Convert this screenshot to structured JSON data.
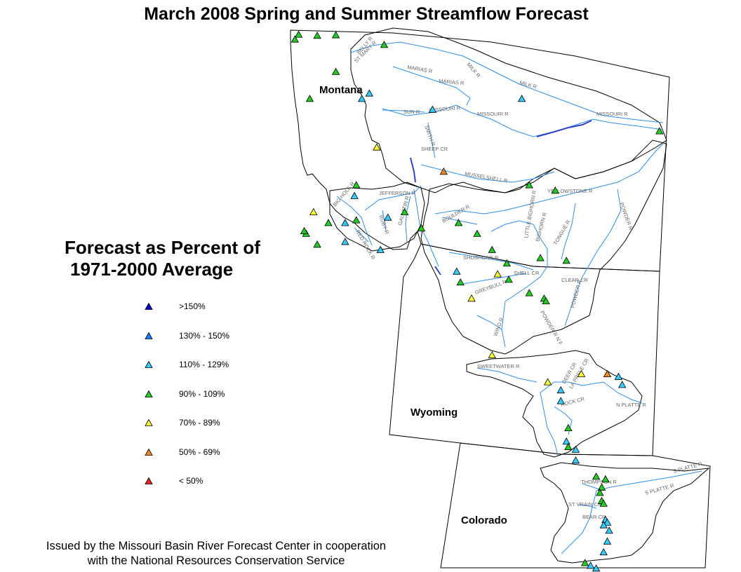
{
  "title": "March 2008 Spring and Summer Streamflow Forecast",
  "legend": {
    "heading_line1": "Forecast as Percent of",
    "heading_line2": "1971-2000 Average",
    "classes": [
      {
        "label": ">150%",
        "color": "#0000cc"
      },
      {
        "label": "130% - 150%",
        "color": "#1e78ff"
      },
      {
        "label": "110% - 129%",
        "color": "#33ccff"
      },
      {
        "label": "90% - 109%",
        "color": "#22cc22"
      },
      {
        "label": "70% - 89%",
        "color": "#ffff33"
      },
      {
        "label": "50% - 69%",
        "color": "#ee8822"
      },
      {
        "label": "< 50%",
        "color": "#ee2222"
      }
    ]
  },
  "states": {
    "montana": "Montana",
    "wyoming": "Wyoming",
    "colorado": "Colorado"
  },
  "credit": {
    "line1": "Issued by the Missouri Basin River Forecast Center in cooperation",
    "line2": "with the National Resources Conservation Service"
  },
  "rivers": [
    "BELLY R",
    "ST MARY R",
    "MILK R",
    "MARIAS R",
    "MARIAS R",
    "MILK R",
    "SUN R",
    "MISSOURI R",
    "MISSOURI R",
    "MISSOURI R",
    "SMITH R",
    "SHEEP CR",
    "MUSSELSHELL R",
    "BIG HOLE R",
    "JEFFERSON R",
    "RUBY R",
    "GALLATIN R",
    "RED ROCK R",
    "BOULDER R",
    "YELLOWSTONE R",
    "POWDER R",
    "BIGHORN R",
    "LITTLE BIGHORN R",
    "TONGUE R",
    "SHOSHONE R",
    "CLEAR CR",
    "SHELL CR",
    "GREYBULL R",
    "POWDER R",
    "POWDER R N F",
    "WIND R",
    "SWEETWATER R",
    "DEER CR",
    "LA PRELE CR",
    "N PLATTE R",
    "ROCK CR",
    "THOMPSON R",
    "S PLATTE R",
    "S PLATTE R",
    "ST VRAIN CR",
    "BEAR CR"
  ],
  "gauges": [
    {
      "class": 3,
      "lon": -113.8,
      "lat": 48.99
    },
    {
      "class": 3,
      "lon": -113.3,
      "lat": 48.97
    },
    {
      "class": 3,
      "lon": -112.8,
      "lat": 48.98
    },
    {
      "class": 3,
      "lon": -111.5,
      "lat": 48.8
    },
    {
      "class": 3,
      "lon": -113.9,
      "lat": 48.9
    },
    {
      "class": 3,
      "lon": -112.8,
      "lat": 48.3
    },
    {
      "class": 2,
      "lon": -111.9,
      "lat": 47.9
    },
    {
      "class": 2,
      "lon": -112.1,
      "lat": 47.8
    },
    {
      "class": 3,
      "lon": -113.5,
      "lat": 47.8
    },
    {
      "class": 2,
      "lon": -110.2,
      "lat": 47.6
    },
    {
      "class": 2,
      "lon": -107.8,
      "lat": 47.8
    },
    {
      "class": 3,
      "lon": -104.1,
      "lat": 47.2
    },
    {
      "class": 4,
      "lon": -111.7,
      "lat": 46.9
    },
    {
      "class": 5,
      "lon": -109.9,
      "lat": 46.45
    },
    {
      "class": 3,
      "lon": -112.25,
      "lat": 46.2
    },
    {
      "class": 2,
      "lon": -112.3,
      "lat": 46.0
    },
    {
      "class": 4,
      "lon": -113.4,
      "lat": 45.7
    },
    {
      "class": 3,
      "lon": -113.0,
      "lat": 45.5
    },
    {
      "class": 2,
      "lon": -112.55,
      "lat": 45.5
    },
    {
      "class": 3,
      "lon": -112.25,
      "lat": 45.55
    },
    {
      "class": 2,
      "lon": -111.4,
      "lat": 45.6
    },
    {
      "class": 3,
      "lon": -110.95,
      "lat": 45.7
    },
    {
      "class": 3,
      "lon": -113.6,
      "lat": 45.3
    },
    {
      "class": 3,
      "lon": -113.65,
      "lat": 45.35
    },
    {
      "class": 3,
      "lon": -113.3,
      "lat": 45.1
    },
    {
      "class": 2,
      "lon": -112.55,
      "lat": 45.15
    },
    {
      "class": 2,
      "lon": -111.6,
      "lat": 45.0
    },
    {
      "class": 3,
      "lon": -110.5,
      "lat": 45.4
    },
    {
      "class": 3,
      "lon": -109.5,
      "lat": 45.5
    },
    {
      "class": 3,
      "lon": -109.0,
      "lat": 45.3
    },
    {
      "class": 3,
      "lon": -107.6,
      "lat": 46.2
    },
    {
      "class": 3,
      "lon": -106.9,
      "lat": 46.1
    },
    {
      "class": 3,
      "lon": -108.6,
      "lat": 45.0
    },
    {
      "class": 3,
      "lon": -108.2,
      "lat": 44.75
    },
    {
      "class": 3,
      "lon": -107.3,
      "lat": 44.85
    },
    {
      "class": 3,
      "lon": -106.6,
      "lat": 44.8
    },
    {
      "class": 2,
      "lon": -109.55,
      "lat": 44.6
    },
    {
      "class": 4,
      "lon": -108.45,
      "lat": 44.55
    },
    {
      "class": 3,
      "lon": -108.15,
      "lat": 44.45
    },
    {
      "class": 3,
      "lon": -109.45,
      "lat": 44.4
    },
    {
      "class": 3,
      "lon": -107.6,
      "lat": 44.2
    },
    {
      "class": 4,
      "lon": -109.15,
      "lat": 44.1
    },
    {
      "class": 3,
      "lon": -107.2,
      "lat": 44.1
    },
    {
      "class": 3,
      "lon": -107.15,
      "lat": 44.05
    },
    {
      "class": 4,
      "lon": -108.6,
      "lat": 43.05
    },
    {
      "class": 4,
      "lon": -107.1,
      "lat": 42.55
    },
    {
      "class": 4,
      "lon": -106.2,
      "lat": 42.7
    },
    {
      "class": 5,
      "lon": -105.5,
      "lat": 42.7
    },
    {
      "class": 2,
      "lon": -105.2,
      "lat": 42.65
    },
    {
      "class": 2,
      "lon": -105.1,
      "lat": 42.5
    },
    {
      "class": 2,
      "lon": -106.75,
      "lat": 42.4
    },
    {
      "class": 2,
      "lon": -106.75,
      "lat": 42.2
    },
    {
      "class": 3,
      "lon": -106.55,
      "lat": 41.7
    },
    {
      "class": 2,
      "lon": -106.6,
      "lat": 41.45
    },
    {
      "class": 2,
      "lon": -106.35,
      "lat": 41.3
    },
    {
      "class": 3,
      "lon": -106.55,
      "lat": 41.35
    },
    {
      "class": 2,
      "lon": -106.35,
      "lat": 41.1
    },
    {
      "class": 3,
      "lon": -105.8,
      "lat": 40.8
    },
    {
      "class": 3,
      "lon": -105.55,
      "lat": 40.75
    },
    {
      "class": 3,
      "lon": -105.65,
      "lat": 40.6
    },
    {
      "class": 3,
      "lon": -105.7,
      "lat": 40.5
    },
    {
      "class": 3,
      "lon": -105.65,
      "lat": 40.35
    },
    {
      "class": 3,
      "lon": -105.6,
      "lat": 40.3
    },
    {
      "class": 2,
      "lon": -105.55,
      "lat": 40.0
    },
    {
      "class": 2,
      "lon": -105.5,
      "lat": 39.95
    },
    {
      "class": 2,
      "lon": -105.6,
      "lat": 39.9
    },
    {
      "class": 2,
      "lon": -105.45,
      "lat": 39.8
    },
    {
      "class": 2,
      "lon": -105.5,
      "lat": 39.6
    },
    {
      "class": 2,
      "lon": -105.6,
      "lat": 39.4
    },
    {
      "class": 3,
      "lon": -106.1,
      "lat": 39.2
    },
    {
      "class": 2,
      "lon": -105.95,
      "lat": 39.15
    },
    {
      "class": 2,
      "lon": -105.8,
      "lat": 39.1
    }
  ]
}
